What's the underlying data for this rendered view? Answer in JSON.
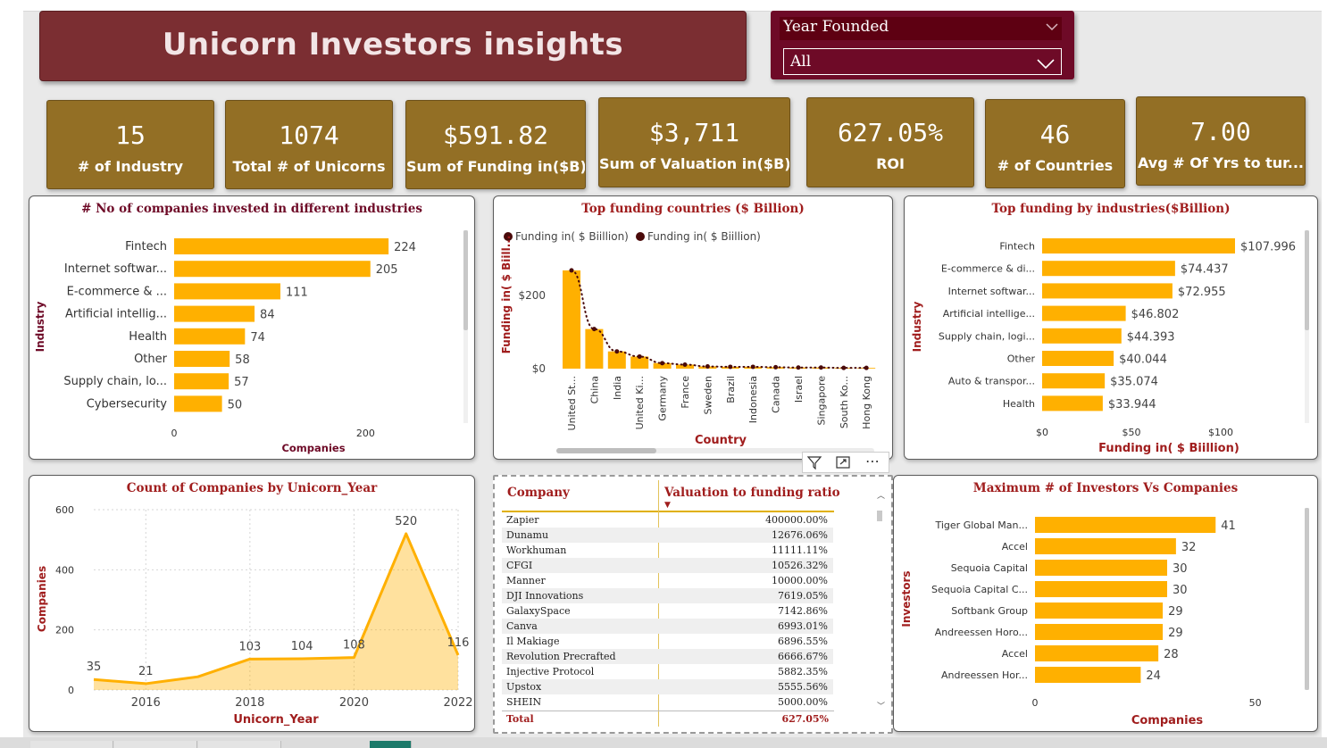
{
  "title": "Unicorn Investors insights",
  "slicer": {
    "label": "Year Founded",
    "value": "All"
  },
  "kpis": [
    {
      "value": "15",
      "label": "# of Industry"
    },
    {
      "value": "1074",
      "label": "Total # of Unicorns"
    },
    {
      "value": "$591.82",
      "label": "Sum of Funding in($B)"
    },
    {
      "value": "$3,711",
      "label": "Sum of Valuation in($B)"
    },
    {
      "value": "627.05%",
      "label": "ROI"
    },
    {
      "value": "46",
      "label": "# of Countries"
    },
    {
      "value": "7.00",
      "label": "Avg # Of Yrs to tur..."
    }
  ],
  "chart_data": [
    {
      "type": "bar",
      "title": "# No of companies invested in different industries",
      "xlabel": "Companies",
      "ylabel": "Industry",
      "categories": [
        "Fintech",
        "Internet softwar...",
        "E-commerce & ...",
        "Artificial intellig...",
        "Health",
        "Other",
        "Supply chain, lo...",
        "Cybersecurity"
      ],
      "values": [
        224,
        205,
        111,
        84,
        74,
        58,
        57,
        50
      ],
      "xticks": [
        "0",
        "200"
      ],
      "xlim": [
        0,
        250
      ],
      "color": "#ffb000"
    },
    {
      "type": "bar",
      "title": "Top funding countries ($ Billion)",
      "xlabel": "Country",
      "ylabel": "Funding in( $ Biill...",
      "legend": [
        "Funding in( $ Biillion)",
        "Funding in( $ Biillion)"
      ],
      "categories": [
        "United St...",
        "China",
        "India",
        "United Ki...",
        "Germany",
        "France",
        "Sweden",
        "Brazil",
        "Indonesia",
        "Canada",
        "Israel",
        "Singapore",
        "South Ko...",
        "Hong Kong"
      ],
      "values": [
        268,
        108,
        47,
        33,
        15,
        11,
        6,
        5,
        5,
        4,
        3,
        3,
        2,
        2
      ],
      "yticks": [
        "$0",
        "$200"
      ],
      "ylim": [
        0,
        280
      ],
      "color": "#ffb000",
      "line_color": "#4a0a0a"
    },
    {
      "type": "bar",
      "title": "Top funding by industries($Billion)",
      "xlabel": "Funding in( $ Biillion)",
      "ylabel": "Industry",
      "categories": [
        "Fintech",
        "E-commerce & di...",
        "Internet softwar...",
        "Artificial intellige...",
        "Supply chain, logi...",
        "Other",
        "Auto & transpor...",
        "Health"
      ],
      "values": [
        107.996,
        74.437,
        72.955,
        46.802,
        44.393,
        40.044,
        35.074,
        33.944
      ],
      "labels": [
        "$107.996",
        "$74.437",
        "$72.955",
        "$46.802",
        "$44.393",
        "$40.044",
        "$35.074",
        "$33.944"
      ],
      "xticks": [
        "$0",
        "$50",
        "$100"
      ],
      "xlim": [
        0,
        120
      ],
      "color": "#ffb000"
    },
    {
      "type": "area",
      "title": "Count of Companies by Unicorn_Year",
      "xlabel": "Unicorn_Year",
      "ylabel": "Companies",
      "x": [
        2015,
        2016,
        2017,
        2018,
        2019,
        2020,
        2021,
        2022
      ],
      "values": [
        35,
        21,
        44,
        103,
        104,
        108,
        520,
        116
      ],
      "labels": [
        "35",
        "21",
        "",
        "103",
        "104",
        "108",
        "520",
        "116"
      ],
      "xticks": [
        "2016",
        "2018",
        "2020",
        "2022"
      ],
      "yticks": [
        "0",
        "200",
        "400",
        "600"
      ],
      "ylim": [
        0,
        600
      ],
      "color": "#ffb000"
    },
    {
      "type": "bar",
      "title": "Maximum # of Investors Vs Companies",
      "xlabel": "Companies",
      "ylabel": "Investors",
      "categories": [
        "Tiger Global Man...",
        "Accel",
        "Sequoia Capital",
        "Sequoia Capital C...",
        "Softbank Group",
        "Andreessen Horo...",
        "Accel",
        "Andreessen Hor..."
      ],
      "values": [
        41,
        32,
        30,
        30,
        29,
        29,
        28,
        24
      ],
      "xticks": [
        "0",
        "50"
      ],
      "xlim": [
        0,
        60
      ],
      "color": "#ffb000"
    },
    {
      "type": "table",
      "columns": [
        "Company",
        "Valuation to funding ratio"
      ],
      "rows": [
        [
          "Zapier",
          "400000.00%"
        ],
        [
          "Dunamu",
          "12676.06%"
        ],
        [
          "Workhuman",
          "11111.11%"
        ],
        [
          "CFGI",
          "10526.32%"
        ],
        [
          "Manner",
          "10000.00%"
        ],
        [
          "DJI Innovations",
          "7619.05%"
        ],
        [
          "GalaxySpace",
          "7142.86%"
        ],
        [
          "Canva",
          "6993.01%"
        ],
        [
          "Il Makiage",
          "6896.55%"
        ],
        [
          "Revolution Precrafted",
          "6666.67%"
        ],
        [
          "Injective Protocol",
          "5882.35%"
        ],
        [
          "Upstox",
          "5555.56%"
        ],
        [
          "SHEIN",
          "5000.00%"
        ]
      ],
      "total": [
        "Total",
        "627.05%"
      ]
    }
  ]
}
